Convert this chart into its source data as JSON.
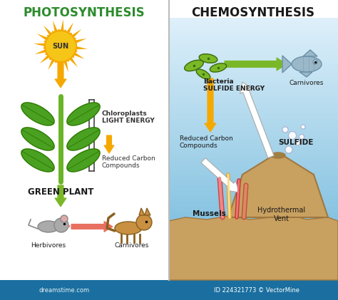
{
  "title_left": "PHOTOSYNTHESIS",
  "title_right": "CHEMOSYNTHESIS",
  "title_color_left": "#2d8b2d",
  "title_color_right": "#1a1a1a",
  "bg_color": "#ffffff",
  "right_bg_top": "#ddeef8",
  "right_bg_bottom": "#6ab4d8",
  "divider_color": "#bbbbbb",
  "photo_labels": {
    "sun": "SUN",
    "green_plant": "GREEN PLANT",
    "chloroplasts": "Chloroplasts\nLIGHT ENERGY",
    "reduced_carbon_left": "Reduced Carbon\nCompounds",
    "herbivores": "Herbivores",
    "carnivores_left": "Carnivores"
  },
  "chemo_labels": {
    "bacteria": "Bacteria\nSULFIDE ENERGY",
    "carnivores_right": "Carnivores",
    "reduced_carbon_right": "Reduced Carbon\nCompounds",
    "sulfide": "SULFIDE",
    "mussels": "Mussels",
    "hydrothermal": "Hydrothermal\nVent"
  },
  "arrow_yellow": "#f5a800",
  "arrow_green": "#7ab828",
  "arrow_salmon": "#e87060",
  "arrow_white": "#ffffff",
  "sun_inner": "#f5c518",
  "sun_outer": "#f5a800",
  "stem_color": "#6ab428",
  "leaf_color": "#4aa020",
  "leaf_dark": "#2d7a00",
  "ground_color": "#c8a060",
  "ground_dark": "#a07840",
  "bacteria_color": "#7ab828",
  "bacteria_dark": "#3a6a0a",
  "fish_color": "#9ab8c8",
  "fish_dark": "#6a90a8",
  "footer_color": "#1a6fa0",
  "watermark": "ID 224321773 © VectorMine",
  "footer_left": "dreamstime.com"
}
